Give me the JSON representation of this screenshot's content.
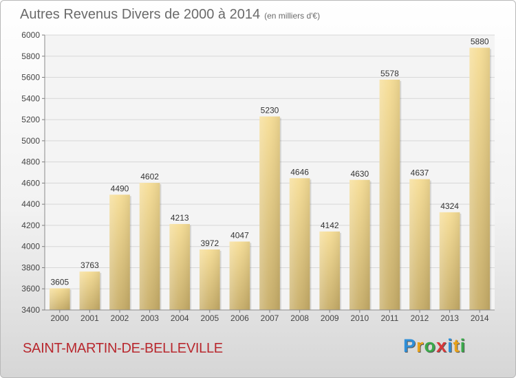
{
  "title": "Autres Revenus Divers de 2000 à 2014",
  "unit_note": "(en milliers d'€)",
  "place_name": "SAINT-MARTIN-DE-BELLEVILLE",
  "logo": {
    "text": "Proxiti",
    "letters": [
      {
        "char": "P",
        "color": "#2f8fd8"
      },
      {
        "char": "r",
        "color": "#e8a21a"
      },
      {
        "char": "o",
        "color": "#3aa84a"
      },
      {
        "char": "x",
        "color": "#d8383a"
      },
      {
        "char": "i",
        "color": "#2f8fd8"
      },
      {
        "char": "t",
        "color": "#e8a21a"
      },
      {
        "char": "i",
        "color": "#3aa84a"
      }
    ]
  },
  "chart_data": {
    "type": "bar",
    "title": "Autres Revenus Divers de 2000 à 2014",
    "subtitle": "(en milliers d'€)",
    "xlabel": "",
    "ylabel": "",
    "categories": [
      "2000",
      "2001",
      "2002",
      "2003",
      "2004",
      "2005",
      "2006",
      "2007",
      "2008",
      "2009",
      "2010",
      "2011",
      "2012",
      "2013",
      "2014"
    ],
    "values": [
      3605,
      3763,
      4490,
      4602,
      4213,
      3972,
      4047,
      5230,
      4646,
      4142,
      4630,
      5578,
      4637,
      4324,
      5880
    ],
    "ylim": [
      3400,
      6000
    ],
    "yticks": [
      3400,
      3600,
      3800,
      4000,
      4200,
      4400,
      4600,
      4800,
      5000,
      5200,
      5400,
      5600,
      5800,
      6000
    ],
    "grid": true,
    "legend": "none",
    "bar_color": "#e6cc84"
  }
}
